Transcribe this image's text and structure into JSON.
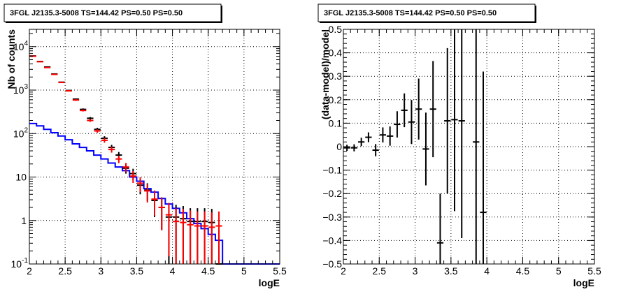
{
  "chart_data": [
    {
      "type": "line",
      "title": "3FGL J2135.3-5008 TS=144.42 PS=0.50 PS=0.50",
      "xlabel": "logE",
      "ylabel": "Nb of counts",
      "xlim": [
        2,
        5.5
      ],
      "ylim": [
        0.1,
        25000
      ],
      "y_scale": "log",
      "grid": true,
      "x_ticks": [
        "2",
        "2.5",
        "3",
        "3.5",
        "4",
        "4.5",
        "5",
        "5.5"
      ],
      "y_ticks": [
        {
          "value": 0.1,
          "label": "10-1",
          "base": "10",
          "exp": "-1"
        },
        {
          "value": 1,
          "label": "1",
          "base": "1",
          "exp": ""
        },
        {
          "value": 10,
          "label": "10",
          "base": "10",
          "exp": ""
        },
        {
          "value": 100,
          "label": "102",
          "base": "10",
          "exp": "2"
        },
        {
          "value": 1000,
          "label": "103",
          "base": "10",
          "exp": "3"
        },
        {
          "value": 10000,
          "label": "104",
          "base": "10",
          "exp": "4"
        }
      ],
      "series": [
        {
          "color": "#0000ff",
          "style": "step",
          "bin_edges": [
            2,
            2.1,
            2.2,
            2.3,
            2.4,
            2.5,
            2.6,
            2.7,
            2.8,
            2.9,
            3.0,
            3.1,
            3.2,
            3.3,
            3.4,
            3.5,
            3.6,
            3.7,
            3.8,
            3.9,
            4.0,
            4.1,
            4.2,
            4.3,
            4.4,
            4.5,
            4.6,
            4.7,
            4.8,
            5.5
          ],
          "values": [
            170,
            150,
            125,
            105,
            88,
            72,
            58,
            48,
            40,
            32,
            26,
            21,
            17,
            14,
            10,
            8,
            5.4,
            4.5,
            3.2,
            2.4,
            1.9,
            1.5,
            1.1,
            0.85,
            0.65,
            0.48,
            0.35,
            0.1,
            0.1
          ]
        },
        {
          "color": "#000000",
          "style": "errorbar",
          "x": [
            2.05,
            2.15,
            2.25,
            2.35,
            2.45,
            2.55,
            2.65,
            2.75,
            2.85,
            2.95,
            3.05,
            3.15,
            3.25,
            3.35,
            3.45,
            3.55,
            3.65,
            3.75,
            3.85,
            3.95,
            4.05,
            4.15,
            4.25,
            4.35,
            4.45,
            4.55,
            4.65
          ],
          "values": [
            6100,
            4550,
            3400,
            2350,
            1520,
            980,
            620,
            360,
            225,
            125,
            78,
            48,
            32,
            16,
            12,
            6.5,
            5,
            2.9,
            2,
            1.2,
            1.2,
            1.1,
            0.95,
            0.95,
            0.95,
            0.9,
            0.1
          ],
          "err": [
            78,
            67,
            58,
            48,
            39,
            31,
            25,
            19,
            15,
            11,
            8.8,
            6.9,
            5.6,
            4,
            3.5,
            2.5,
            2.2,
            1.7,
            1.4,
            1.1,
            1.1,
            1.05,
            0.97,
            0.97,
            0.97,
            0.95,
            0.5
          ]
        },
        {
          "color": "#ff0000",
          "style": "errorbar",
          "x": [
            2.05,
            2.15,
            2.25,
            2.35,
            2.45,
            2.55,
            2.65,
            2.75,
            2.85,
            2.95,
            3.05,
            3.15,
            3.25,
            3.35,
            3.45,
            3.55,
            3.65,
            3.75,
            3.85,
            3.95,
            4.05,
            4.15,
            4.25,
            4.35,
            4.45,
            4.55,
            4.65
          ],
          "values": [
            6000,
            4500,
            3300,
            2300,
            1500,
            960,
            590,
            340,
            200,
            115,
            70,
            43,
            26,
            17,
            10.5,
            7.2,
            4.8,
            3.1,
            2,
            1.35,
            0.95,
            0.9,
            0.8,
            0.75,
            0.75,
            0.7,
            0.75
          ],
          "err": [
            77,
            67,
            57,
            48,
            39,
            31,
            24,
            18,
            14,
            10.7,
            8.4,
            6.6,
            5.1,
            4.1,
            3.2,
            2.7,
            2.2,
            1.8,
            1.4,
            1.2,
            0.97,
            0.95,
            0.9,
            0.87,
            0.87,
            0.84,
            0.87
          ]
        }
      ]
    },
    {
      "type": "scatter",
      "title": "3FGL J2135.3-5008 TS=144.42 PS=0.50 PS=0.50",
      "xlabel": "logE",
      "ylabel": "(data-model)/model",
      "xlim": [
        2,
        5.5
      ],
      "ylim": [
        -0.5,
        0.5
      ],
      "grid": true,
      "x_ticks": [
        "2",
        "2.5",
        "3",
        "3.5",
        "4",
        "4.5",
        "5",
        "5.5"
      ],
      "y_ticks": [
        "−0.5",
        "−0.4",
        "−0.3",
        "−0.2",
        "−0.1",
        "0",
        "0.1",
        "0.2",
        "0.3",
        "0.4",
        "0.5"
      ],
      "series": [
        {
          "color": "#000000",
          "style": "errorbar",
          "x": [
            2.05,
            2.15,
            2.25,
            2.35,
            2.45,
            2.55,
            2.65,
            2.75,
            2.85,
            2.95,
            3.05,
            3.15,
            3.25,
            3.35,
            3.45,
            3.55,
            3.65,
            3.85,
            3.95
          ],
          "values": [
            -0.005,
            -0.005,
            0.02,
            0.04,
            -0.015,
            0.05,
            0.045,
            0.095,
            0.155,
            0.105,
            0.16,
            -0.01,
            0.16,
            -0.41,
            0.11,
            0.115,
            0.11,
            0.02,
            -0.28
          ],
          "err": [
            0.013,
            0.015,
            0.018,
            0.021,
            0.026,
            0.032,
            0.041,
            0.056,
            0.072,
            0.094,
            0.13,
            0.155,
            0.205,
            0.21,
            0.31,
            0.39,
            0.5,
            0.6,
            0.6
          ]
        }
      ]
    }
  ]
}
